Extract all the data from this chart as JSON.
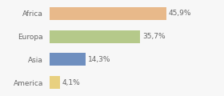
{
  "categories": [
    "Africa",
    "Europa",
    "Asia",
    "America"
  ],
  "values": [
    45.9,
    35.7,
    14.3,
    4.1
  ],
  "labels": [
    "45,9%",
    "35,7%",
    "14,3%",
    "4,1%"
  ],
  "bar_colors": [
    "#e8b98a",
    "#b5c98a",
    "#6f8fbf",
    "#e8d080"
  ],
  "background_color": "#f7f7f7",
  "xlim": [
    0,
    58
  ],
  "label_fontsize": 6.5,
  "tick_fontsize": 6.5,
  "bar_height": 0.55
}
